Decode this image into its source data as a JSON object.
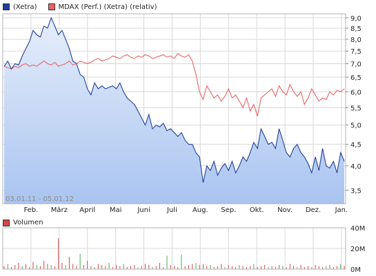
{
  "legend": {
    "series1": "(Xetra)",
    "series2": "MDAX (Perf.) (Xetra) (relativ)",
    "volume": "Volumen"
  },
  "colors": {
    "price": "#1f3f9a",
    "price_fill_top": "#e6eefb",
    "price_fill_bottom": "#a9c4f0",
    "relative": "#e86464",
    "volume_bar": "#d64545",
    "volume_bar_green": "#4caa4c",
    "grid": "#d8d8d8"
  },
  "chart_data": [
    {
      "type": "area",
      "date_range_label": "03.01.11 - 05.01.12",
      "x_tick_labels": [
        "Feb.",
        "März",
        "April",
        "Mai",
        "Juni",
        "Juli",
        "Aug.",
        "Sep.",
        "Okt.",
        "Nov.",
        "Dez.",
        "Jan."
      ],
      "y_tick_labels": [
        "9,0",
        "8,5",
        "8,0",
        "7,5",
        "7,0",
        "6,5",
        "6,0",
        "5,5",
        "5,0",
        "4,5",
        "4,0",
        "3,5"
      ],
      "y_ticks": [
        9.0,
        8.5,
        8.0,
        7.5,
        7.0,
        6.5,
        6.0,
        5.5,
        5.0,
        4.5,
        4.0,
        3.5
      ],
      "y_scale": "log",
      "ylim": [
        3.25,
        9.2
      ],
      "grid": true,
      "series": [
        {
          "name": "(Xetra)",
          "values": [
            6.9,
            7.1,
            6.8,
            7.0,
            6.95,
            7.3,
            7.6,
            7.9,
            8.4,
            8.2,
            8.1,
            8.6,
            8.5,
            9.0,
            8.6,
            8.2,
            8.4,
            8.0,
            7.6,
            7.1,
            7.0,
            6.6,
            6.5,
            6.1,
            5.9,
            6.3,
            6.1,
            6.2,
            6.1,
            6.15,
            6.2,
            6.1,
            6.3,
            6.0,
            5.8,
            5.7,
            5.6,
            5.4,
            5.2,
            5.0,
            5.3,
            4.9,
            5.0,
            4.95,
            5.05,
            4.85,
            4.9,
            4.8,
            4.7,
            4.8,
            4.6,
            4.5,
            4.5,
            4.3,
            4.2,
            3.65,
            4.0,
            3.9,
            4.1,
            3.8,
            3.95,
            4.05,
            3.9,
            4.1,
            3.85,
            4.0,
            4.2,
            4.1,
            4.3,
            4.55,
            4.4,
            4.9,
            4.7,
            4.5,
            4.55,
            4.4,
            4.9,
            4.6,
            4.3,
            4.2,
            4.4,
            4.5,
            4.3,
            4.2,
            4.05,
            3.85,
            4.2,
            3.9,
            4.4,
            4.0,
            3.95,
            4.1,
            3.85,
            4.3,
            4.1
          ]
        },
        {
          "name": "MDAX (Perf.) (Xetra) (relativ)",
          "values": [
            6.9,
            6.85,
            6.8,
            6.9,
            6.85,
            6.95,
            7.0,
            6.9,
            6.95,
            6.9,
            7.0,
            7.1,
            7.0,
            6.95,
            7.05,
            6.9,
            6.95,
            7.0,
            7.1,
            6.95,
            7.0,
            7.1,
            7.05,
            7.0,
            7.05,
            7.15,
            7.2,
            7.1,
            7.15,
            7.2,
            7.3,
            7.25,
            7.2,
            7.3,
            7.35,
            7.25,
            7.2,
            7.3,
            7.25,
            7.35,
            7.3,
            7.2,
            7.25,
            7.3,
            7.35,
            7.25,
            7.3,
            7.2,
            7.4,
            7.3,
            7.25,
            7.35,
            7.1,
            6.6,
            6.0,
            5.75,
            6.2,
            6.0,
            5.8,
            5.9,
            5.7,
            5.85,
            6.1,
            5.8,
            5.9,
            5.7,
            5.5,
            5.8,
            5.4,
            5.6,
            5.25,
            5.8,
            5.9,
            6.0,
            6.1,
            5.85,
            6.2,
            6.0,
            5.9,
            6.25,
            6.0,
            5.85,
            6.0,
            5.6,
            5.8,
            6.1,
            5.9,
            5.7,
            5.8,
            5.75,
            6.0,
            5.9,
            6.05,
            6.0,
            6.1
          ]
        }
      ]
    },
    {
      "type": "bar",
      "title": "Volumen",
      "y_tick_labels": [
        "40M",
        "20M",
        "0M"
      ],
      "y_ticks": [
        40,
        20,
        0
      ],
      "ylim": [
        0,
        40
      ],
      "grid": true,
      "series": [
        {
          "values": [
            3,
            5,
            2,
            4,
            6,
            3,
            5,
            2,
            7,
            4,
            3,
            8,
            5,
            4,
            3,
            30,
            6,
            4,
            12,
            5,
            3,
            15,
            4,
            8,
            3,
            2,
            5,
            4,
            3,
            6,
            2,
            4,
            3,
            5,
            2,
            3,
            4,
            2,
            3,
            5,
            4,
            2,
            3,
            6,
            2,
            13,
            4,
            3,
            2,
            14,
            3,
            4,
            5,
            6,
            4,
            5,
            3,
            4,
            2,
            3,
            5,
            2,
            4,
            3,
            2,
            4,
            3,
            2,
            3,
            5,
            2,
            3,
            4,
            2,
            3,
            2,
            4,
            3,
            2,
            5,
            3,
            2,
            4,
            2,
            3,
            2,
            4,
            3,
            2,
            3,
            4,
            2,
            3,
            5,
            3
          ]
        }
      ]
    }
  ]
}
